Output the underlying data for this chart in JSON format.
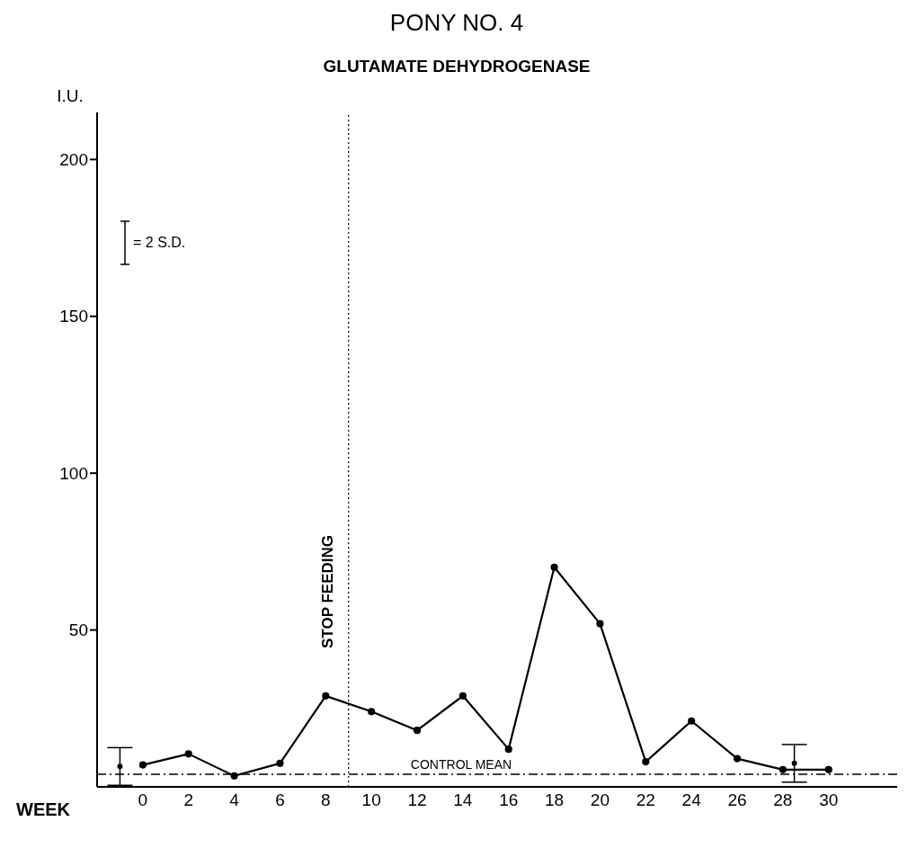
{
  "chart_data": {
    "type": "line",
    "title": "PONY NO. 4",
    "subtitle": "GLUTAMATE DEHYDROGENASE",
    "xlabel": "WEEK",
    "ylabel": "I.U.",
    "xlim": [
      -2,
      33
    ],
    "xticks": [
      0,
      2,
      4,
      6,
      8,
      10,
      12,
      14,
      16,
      18,
      20,
      22,
      24,
      26,
      28,
      30
    ],
    "ylim": [
      0,
      215
    ],
    "yticks": [
      50,
      100,
      150,
      200
    ],
    "series": [
      {
        "color": "#000000",
        "x": [
          0,
          2,
          4,
          6,
          8,
          10,
          12,
          14,
          16,
          18,
          20,
          22,
          24,
          26,
          28,
          30
        ],
        "values": [
          7,
          10.5,
          3.5,
          7.5,
          29,
          24,
          18,
          29,
          12,
          70,
          52,
          8,
          21,
          9,
          5.5,
          5.5
        ]
      },
      {
        "type": "scatter",
        "color": "#000000",
        "x": [
          -1,
          28.5
        ],
        "values": [
          6.5,
          7.5
        ],
        "errors": [
          6,
          6
        ]
      }
    ],
    "ref_lines": [
      {
        "axis": "y",
        "value": 4,
        "label": "CONTROL MEAN",
        "line_style": "dashdot",
        "color": "#000000"
      },
      {
        "axis": "x",
        "value": 9,
        "label": "STOP FEEDING",
        "line_style": "dotted",
        "color": "#000000"
      }
    ],
    "annotations": [
      "= 2 S.D."
    ],
    "marker": "circle",
    "line_style": "solid",
    "grid": false,
    "legend": false
  }
}
